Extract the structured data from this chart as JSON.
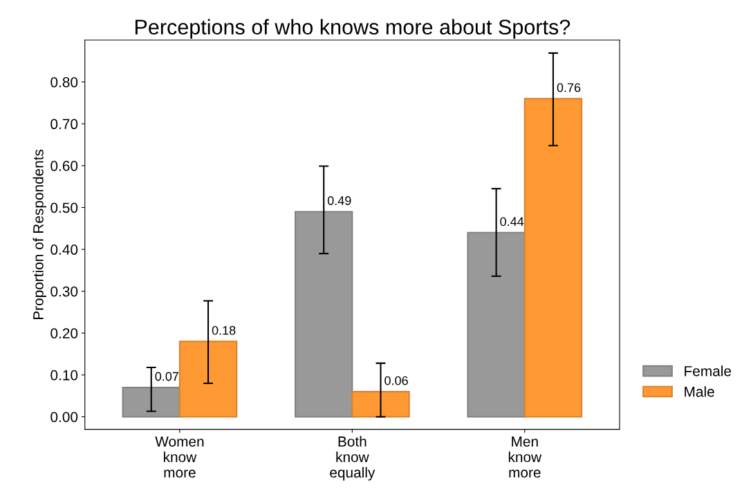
{
  "chart_data": {
    "type": "bar",
    "title": "Perceptions of who knows more about Sports?",
    "ylabel": "Proportion of Respondents",
    "categories": [
      "Women\nknow\nmore",
      "Both\nknow\nequally",
      "Men\nknow\nmore"
    ],
    "series": [
      {
        "name": "Female",
        "color": "#999999",
        "values": [
          0.07,
          0.49,
          0.44
        ],
        "errors": [
          [
            0.013,
            0.118
          ],
          [
            0.39,
            0.599
          ],
          [
            0.336,
            0.545
          ]
        ]
      },
      {
        "name": "Male",
        "color": "#ff9933",
        "values": [
          0.18,
          0.06,
          0.76
        ],
        "errors": [
          [
            0.08,
            0.277
          ],
          [
            0.0,
            0.128
          ],
          [
            0.648,
            0.869
          ]
        ]
      }
    ],
    "ylim": [
      -0.03,
      0.9
    ],
    "yticks": [
      {
        "value": 0,
        "label": "0.00"
      },
      {
        "value": 0.1,
        "label": "0.10"
      },
      {
        "value": 0.2,
        "label": "0.20"
      },
      {
        "value": 0.3,
        "label": "0.30"
      },
      {
        "value": 0.4,
        "label": "0.40"
      },
      {
        "value": 0.5,
        "label": "0.50"
      },
      {
        "value": 0.6,
        "label": "0.60"
      },
      {
        "value": 0.7,
        "label": "0.70"
      },
      {
        "value": 0.8,
        "label": "0.80"
      }
    ],
    "data_labels": true,
    "legend": "right",
    "grid": false
  }
}
